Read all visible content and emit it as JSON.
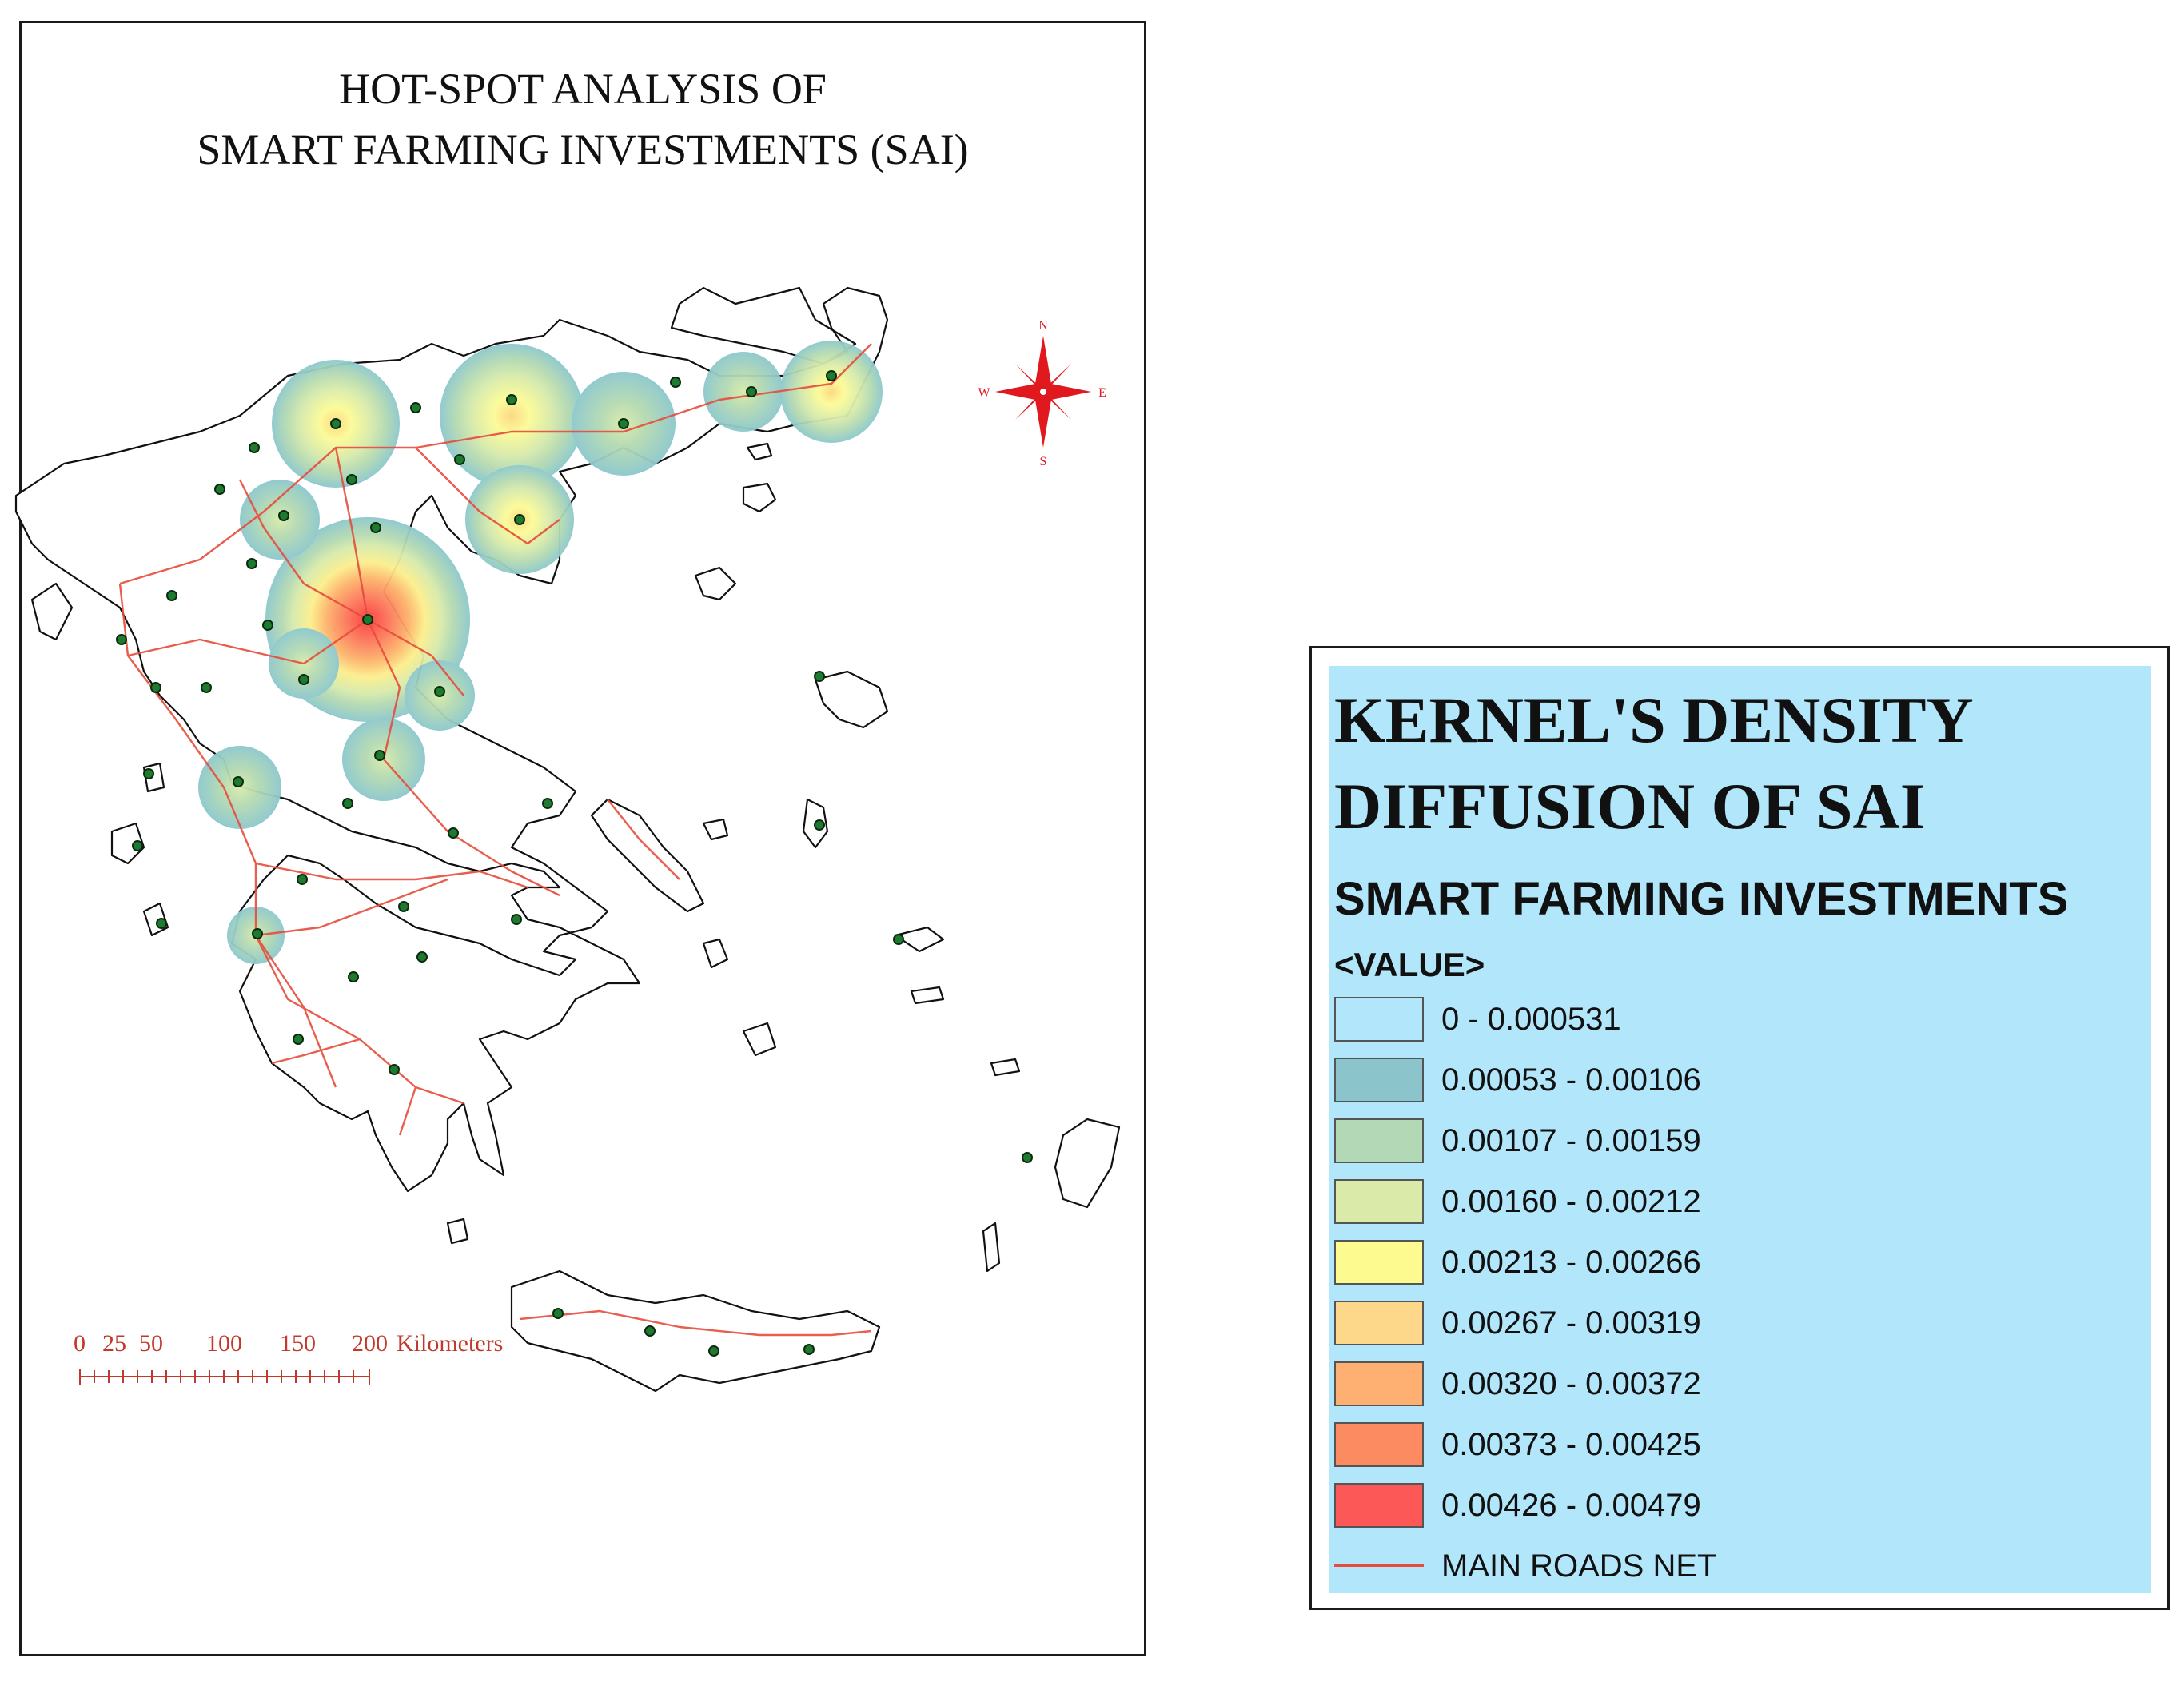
{
  "map": {
    "title_line1": "HOT-SPOT ANALYSIS OF",
    "title_line2": "SMART FARMING INVESTMENTS (SAI)",
    "compass": {
      "n": "N",
      "s": "S",
      "e": "E",
      "w": "W"
    },
    "scale_bar": {
      "ticks": [
        "0",
        "25",
        "50",
        "100",
        "150",
        "200"
      ],
      "unit": "Kilometers"
    },
    "colors": {
      "roads": "#e74c3c",
      "points": "#1e7a2e",
      "coast": "#111111",
      "compass": "#e0191f"
    },
    "hotspot_ramp": [
      "#8cc8cc",
      "#b3d9b2",
      "#d8ebaa",
      "#fcfb96",
      "#fdd77e",
      "#fdb26a",
      "#fc8a5e",
      "#fb5556"
    ]
  },
  "legend": {
    "title_line1": "KERNEL'S DENSITY",
    "title_line2": "DIFFUSION OF SAI",
    "subtitle": "SMART FARMING INVESTMENTS",
    "value_header": "<VALUE>",
    "classes": [
      {
        "label": "0 - 0.000531",
        "color": "#b2e6fa"
      },
      {
        "label": "0.00053 - 0.00106",
        "color": "#8cc4cb"
      },
      {
        "label": "0.00107 - 0.00159",
        "color": "#b3d8b5"
      },
      {
        "label": "0.00160 - 0.00212",
        "color": "#d9eaa9"
      },
      {
        "label": "0.00213 - 0.00266",
        "color": "#fdfb8f"
      },
      {
        "label": "0.00267 - 0.00319",
        "color": "#fdd88a"
      },
      {
        "label": "0.00320 - 0.00372",
        "color": "#fdb072"
      },
      {
        "label": "0.00373 - 0.00425",
        "color": "#fc8b62"
      },
      {
        "label": "0.00426 - 0.00479",
        "color": "#fc5858"
      }
    ],
    "roads_label": "MAIN ROADS NET"
  }
}
